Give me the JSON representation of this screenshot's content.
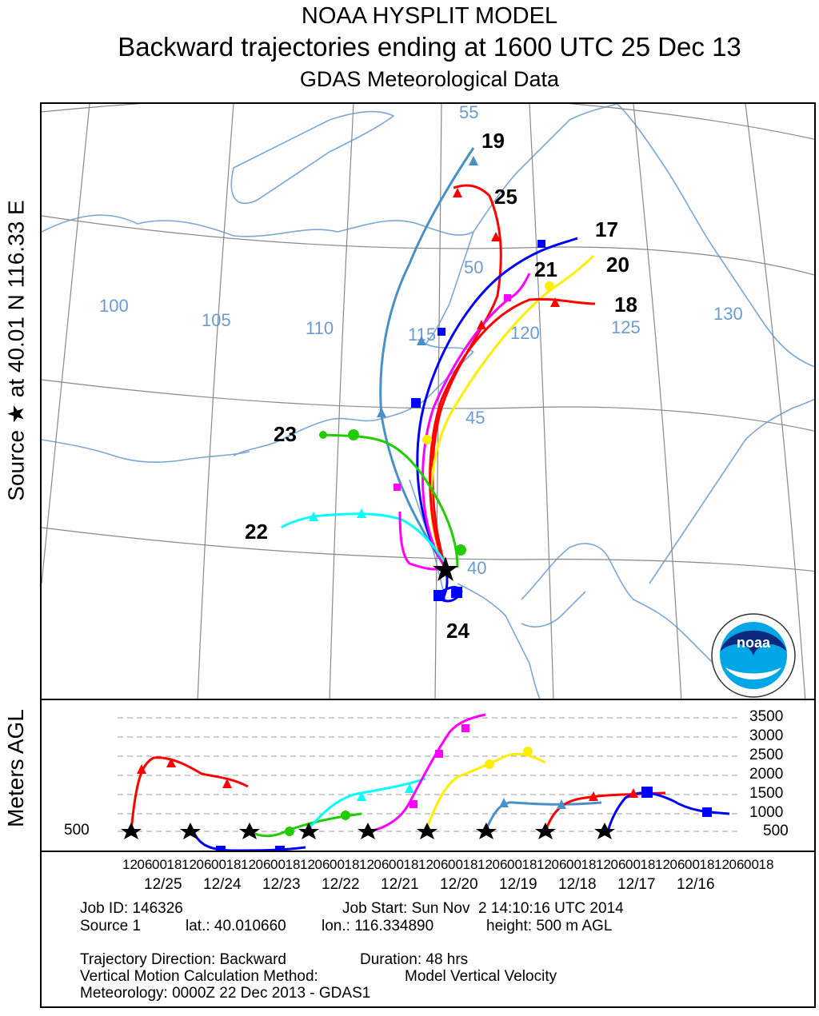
{
  "header": {
    "line1": "NOAA HYSPLIT MODEL",
    "line2": "Backward trajectories ending at 1600 UTC 25 Dec 13",
    "line3": "GDAS Meteorological Data"
  },
  "side_label": "Source ★ at   40.01 N  116.33 E",
  "map": {
    "longitude_labels": [
      "100",
      "105",
      "110",
      "115",
      "120",
      "125",
      "130"
    ],
    "latitude_labels": [
      "55",
      "50",
      "45",
      "40"
    ],
    "trajectory_labels": [
      "19",
      "25",
      "17",
      "20",
      "21",
      "18",
      "23",
      "22",
      "24"
    ],
    "logo_text": "noaa",
    "colors": {
      "red": "#ff0000",
      "blue": "#0000ff",
      "green": "#22cc00",
      "magenta": "#ff00ff",
      "cyan": "#00ffff",
      "yellow": "#ffee00",
      "steelblue": "#4a90c8",
      "boundary": "#7aa7d6"
    }
  },
  "vertical": {
    "ylabel": "Meters AGL",
    "source_height": "500",
    "ticks": [
      "3500",
      "3000",
      "2500",
      "2000",
      "1500",
      "1000",
      "500"
    ],
    "x_hour_labels": [
      "12",
      "06",
      "00",
      "18",
      "12",
      "06",
      "00",
      "18",
      "12",
      "06",
      "00",
      "18",
      "12",
      "06",
      "00",
      "18",
      "12",
      "06",
      "00",
      "18",
      "12",
      "06",
      "00",
      "18",
      "12",
      "06",
      "00",
      "18",
      "12",
      "06",
      "00",
      "18",
      "12",
      "06",
      "00",
      "18",
      "12",
      "06",
      "00",
      "18",
      "12",
      "06",
      "00",
      "18"
    ],
    "x_dates": [
      "12/25",
      "12/24",
      "12/23",
      "12/22",
      "12/21",
      "12/20",
      "12/19",
      "12/18",
      "12/17",
      "12/16"
    ]
  },
  "info": {
    "job_id": "Job ID: 146326",
    "job_start": "Job Start: Sun Nov  2 14:10:16 UTC 2014",
    "source": "Source 1",
    "lat": "lat.: 40.010660",
    "lon": "lon.: 116.334890",
    "height": "height: 500 m AGL",
    "direction": "Trajectory Direction: Backward",
    "duration": "Duration: 48 hrs",
    "vmethod": "Vertical Motion Calculation Method:",
    "vmethod_value": "Model Vertical Velocity",
    "meteorology": "Meteorology: 0000Z 22 Dec 2013 - GDAS1"
  }
}
